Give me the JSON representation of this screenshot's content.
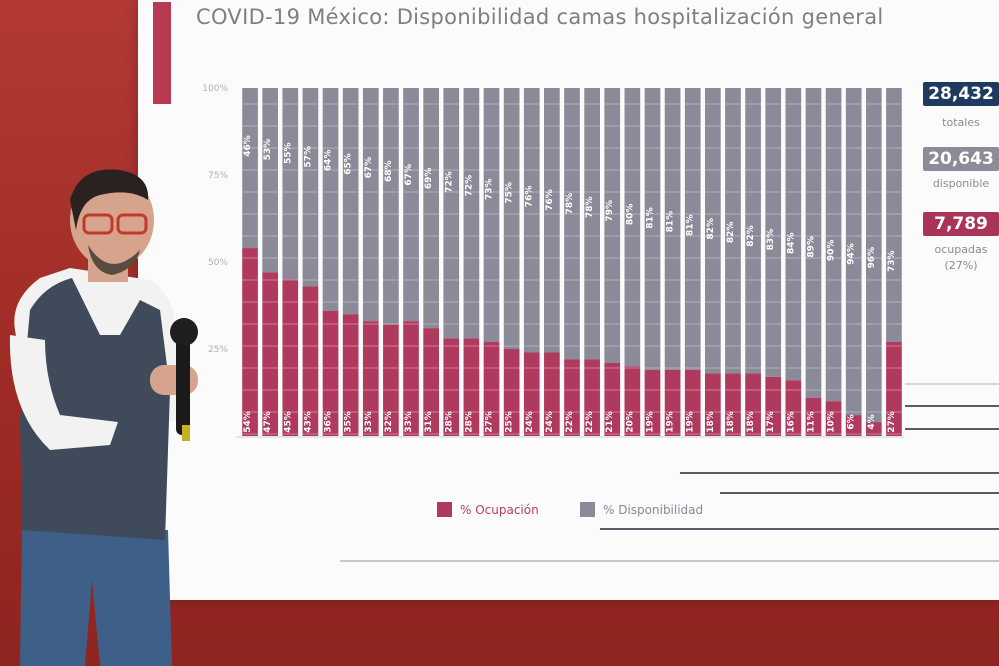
{
  "title": "COVID-19 México: Disponibilidad camas hospitalización general",
  "stats": {
    "totales": {
      "value": "28,432",
      "label": "totales",
      "color": "#1f3a5f"
    },
    "disponibles": {
      "value": "20,643",
      "label": "disponible",
      "color": "#8c8c98"
    },
    "ocupadas": {
      "value": "7,789",
      "label": "ocupadas",
      "pct": "(27%)",
      "color": "#a83458"
    }
  },
  "chart_data": {
    "type": "bar",
    "stacked": true,
    "y_ticks": [
      "100%",
      "75%",
      "50%",
      "25%"
    ],
    "ylim": [
      0,
      100
    ],
    "series": [
      {
        "name": "% Ocupación",
        "color": "#b03a5e",
        "values": [
          54,
          47,
          45,
          43,
          36,
          35,
          33,
          32,
          33,
          31,
          28,
          28,
          27,
          25,
          24,
          24,
          22,
          22,
          21,
          20,
          19,
          19,
          19,
          18,
          18,
          18,
          17,
          16,
          11,
          10,
          6,
          4,
          27
        ],
        "labels": [
          "54%",
          "47%",
          "45%",
          "43%",
          "36%",
          "35%",
          "33%",
          "32%",
          "33%",
          "31%",
          "28%",
          "28%",
          "27%",
          "25%",
          "24%",
          "24%",
          "22%",
          "22%",
          "21%",
          "20%",
          "19%",
          "19%",
          "19%",
          "18%",
          "18%",
          "18%",
          "17%",
          "16%",
          "11%",
          "10%",
          "6%",
          "4%",
          "27%"
        ]
      },
      {
        "name": "% Disponibilidad",
        "color": "#8a8a98",
        "values": [
          46,
          53,
          55,
          57,
          64,
          65,
          67,
          68,
          67,
          69,
          72,
          72,
          73,
          75,
          76,
          76,
          78,
          78,
          79,
          80,
          81,
          81,
          81,
          82,
          82,
          82,
          83,
          84,
          89,
          90,
          94,
          96,
          73
        ],
        "labels": [
          "46%",
          "53%",
          "55%",
          "57%",
          "64%",
          "65%",
          "67%",
          "68%",
          "67%",
          "69%",
          "72%",
          "72%",
          "73%",
          "75%",
          "76%",
          "76%",
          "78%",
          "78%",
          "79%",
          "80%",
          "81%",
          "81%",
          "81%",
          "82%",
          "82%",
          "82%",
          "83%",
          "84%",
          "89%",
          "90%",
          "94%",
          "96%",
          "73%"
        ]
      }
    ]
  }
}
